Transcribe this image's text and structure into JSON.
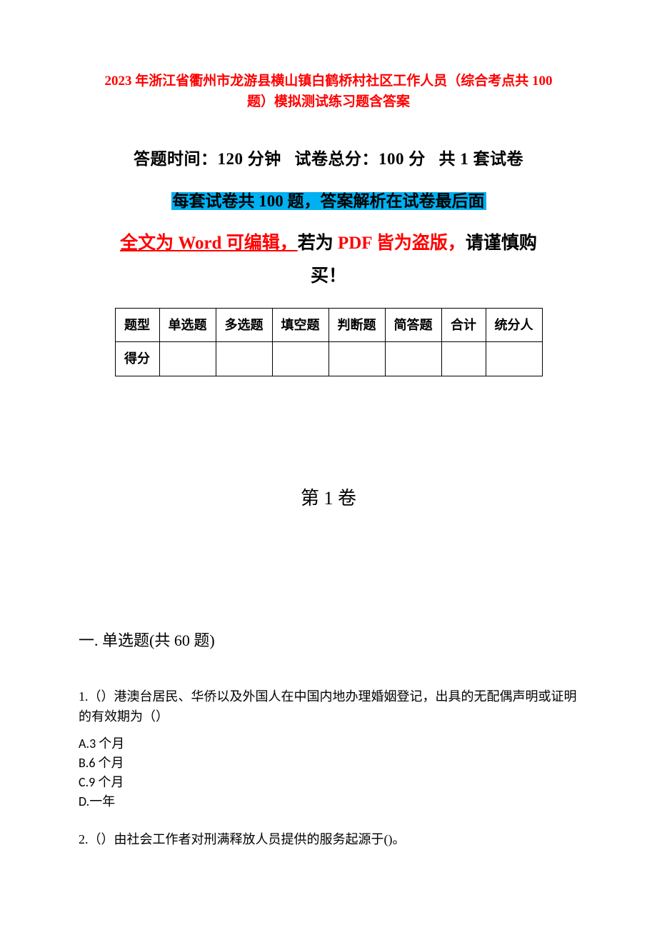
{
  "title": {
    "line1": "2023 年浙江省衢州市龙游县横山镇白鹤桥村社区工作人员（综合考点共 100",
    "line2": "题）模拟测试练习题含答案",
    "color": "#ff0000"
  },
  "exam_info": {
    "time_label": "答题时间：",
    "time_value": "120 分钟",
    "total_label": "试卷总分：",
    "total_value": "100 分",
    "sets_label": "共 1 套试卷"
  },
  "highlight": {
    "text": "每套试卷共 100 题，答案解析在试卷最后面",
    "bg_color": "#00b0f0"
  },
  "warn": {
    "p1_red": "全文为 Word 可编辑，",
    "p1_black": "若为",
    "p2_red": " PDF 皆为盗版，",
    "p3_black": "请谨慎购",
    "p4_black": "买！"
  },
  "table": {
    "headers": [
      "题型",
      "单选题",
      "多选题",
      "填空题",
      "判断题",
      "简答题",
      "合计",
      "统分人"
    ],
    "row_label": "得分",
    "border_color": "#000000"
  },
  "volume_heading": "第 1 卷",
  "section_heading": "一. 单选题(共 60 题)",
  "q1": {
    "text": "1.（）港澳台居民、华侨以及外国人在中国内地办理婚姻登记，出具的无配偶声明或证明的有效期为（）",
    "optA": "A.3 个月",
    "optB": "B.6 个月",
    "optC": "C.9 个月",
    "optD": "D.一年"
  },
  "q2": {
    "text": "2.（）由社会工作者对刑满释放人员提供的服务起源于()。"
  },
  "colors": {
    "background": "#ffffff",
    "text": "#000000",
    "red": "#ff0000",
    "highlight_bg": "#00b0f0"
  },
  "fonts": {
    "body": "SimSun",
    "body_size_pt": 14,
    "title_size_pt": 14,
    "info_size_pt": 17,
    "volume_size_pt": 20
  }
}
